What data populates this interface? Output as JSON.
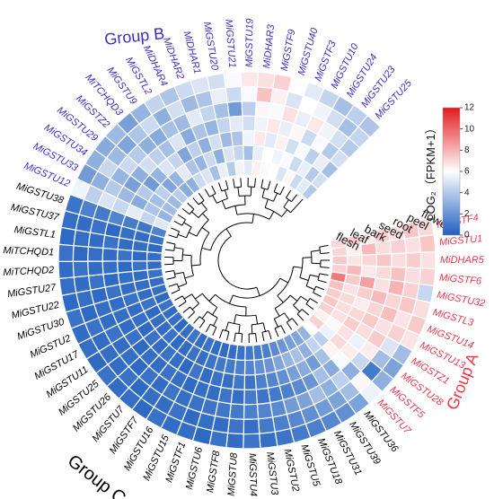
{
  "chart_data": {
    "type": "heatmap",
    "title": "",
    "conditions": [
      "flower",
      "peel",
      "root",
      "seed",
      "bark",
      "leaf",
      "flesh"
    ],
    "colorbar": {
      "label": "LOG₂（FPKM+1）",
      "min": 0,
      "max": 12,
      "ticks": [
        0,
        2,
        4,
        6,
        8,
        10,
        12
      ],
      "colors": [
        "#1f5fbf",
        "#ffffff",
        "#e31a1c"
      ]
    },
    "groups": [
      {
        "name": "Group A",
        "color": "#e8364a"
      },
      {
        "name": "Group B",
        "color": "#3b2cc9"
      },
      {
        "name": "Group C",
        "color": "#000000"
      }
    ],
    "genes": [
      {
        "name": "MiGSTF4",
        "group": "Group A",
        "values": [
          7.0,
          7.5,
          6.8,
          7.2,
          6.5,
          7.3,
          7.0
        ]
      },
      {
        "name": "MiGSTU1",
        "group": "Group A",
        "values": [
          7.5,
          6.8,
          7.2,
          6.9,
          7.8,
          6.4,
          7.1
        ]
      },
      {
        "name": "MiDHAR5",
        "group": "Group A",
        "values": [
          6.8,
          7.3,
          6.9,
          7.5,
          7.1,
          6.7,
          7.4
        ]
      },
      {
        "name": "MiGSTF6",
        "group": "Group A",
        "values": [
          7.2,
          6.9,
          7.6,
          7.0,
          6.6,
          7.8,
          7.2
        ]
      },
      {
        "name": "MiGSTU32",
        "group": "Group A",
        "values": [
          4.5,
          7.2,
          8.0,
          6.8,
          8.5,
          7.4,
          9.5
        ]
      },
      {
        "name": "MiGSTL3",
        "group": "Group A",
        "values": [
          6.9,
          7.5,
          7.1,
          7.8,
          7.3,
          6.8,
          7.6
        ]
      },
      {
        "name": "MiGSTU14",
        "group": "Group A",
        "values": [
          7.4,
          6.7,
          7.7,
          7.1,
          6.5,
          7.0,
          7.3
        ]
      },
      {
        "name": "MiGSTU13",
        "group": "Group A",
        "values": [
          6.7,
          7.2,
          6.8,
          7.4,
          7.0,
          6.9,
          7.5
        ]
      },
      {
        "name": "MiGSTZ1",
        "group": "Group A",
        "values": [
          3.5,
          5.0,
          7.4,
          6.9,
          7.3,
          6.8,
          7.2
        ]
      },
      {
        "name": "MiGSTU28",
        "group": "Group A",
        "values": [
          2.5,
          3.5,
          6.5,
          5.5,
          6.8,
          6.2,
          6.4
        ]
      },
      {
        "name": "MiGSTF5",
        "group": "Group A",
        "values": [
          3.0,
          1.0,
          4.5,
          6.5,
          7.0,
          5.5,
          7.2
        ]
      },
      {
        "name": "MiGSTU7",
        "group": "Group A",
        "values": [
          5.5,
          6.2,
          3.0,
          5.8,
          6.3,
          4.2,
          6.0
        ]
      },
      {
        "name": "MiGSTU36",
        "group": "Group C",
        "values": [
          2.5,
          3.5,
          4.2,
          2.8,
          3.6,
          4.4,
          3.2
        ]
      },
      {
        "name": "MiGSTU39",
        "group": "Group C",
        "values": [
          1.8,
          2.5,
          3.0,
          3.6,
          2.2,
          3.0,
          2.6
        ]
      },
      {
        "name": "MiGSTU31",
        "group": "Group C",
        "values": [
          1.5,
          2.2,
          3.5,
          2.0,
          2.8,
          3.6,
          2.4
        ]
      },
      {
        "name": "MiGSTU18",
        "group": "Group C",
        "values": [
          1.2,
          1.8,
          2.5,
          1.6,
          2.4,
          3.2,
          2.0
        ]
      },
      {
        "name": "MiGSTU5",
        "group": "Group C",
        "values": [
          1.0,
          1.5,
          2.2,
          1.2,
          1.8,
          2.6,
          1.6
        ]
      },
      {
        "name": "MiGSTU2",
        "group": "Group C",
        "values": [
          0.8,
          1.2,
          1.6,
          1.0,
          1.4,
          2.0,
          1.2
        ]
      },
      {
        "name": "MiGSTU3",
        "group": "Group C",
        "values": [
          0.6,
          1.0,
          1.4,
          0.8,
          1.2,
          1.8,
          1.0
        ]
      },
      {
        "name": "MiGSTU4",
        "group": "Group C",
        "values": [
          0.8,
          0.6,
          1.2,
          1.0,
          0.8,
          1.4,
          0.9
        ]
      },
      {
        "name": "MiGSTU8",
        "group": "Group C",
        "values": [
          0.5,
          0.8,
          1.0,
          0.6,
          0.9,
          1.2,
          0.7
        ]
      },
      {
        "name": "MiGSTF8",
        "group": "Group C",
        "values": [
          0.7,
          0.5,
          0.9,
          0.8,
          0.6,
          1.0,
          0.6
        ]
      },
      {
        "name": "MiGSTU6",
        "group": "Group C",
        "values": [
          0.4,
          0.6,
          0.8,
          0.5,
          0.7,
          0.9,
          0.5
        ]
      },
      {
        "name": "MiGSTF1",
        "group": "Group C",
        "values": [
          0.6,
          0.4,
          0.7,
          0.6,
          0.5,
          0.8,
          0.5
        ]
      },
      {
        "name": "MiGSTU15",
        "group": "Group C",
        "values": [
          0.5,
          0.7,
          0.6,
          0.4,
          0.8,
          0.6,
          0.7
        ]
      },
      {
        "name": "MiGSTU16",
        "group": "Group C",
        "values": [
          0.7,
          0.5,
          0.8,
          0.6,
          0.4,
          0.7,
          0.5
        ]
      },
      {
        "name": "MiGSTF7",
        "group": "Group C",
        "values": [
          0.4,
          0.6,
          0.5,
          0.7,
          0.6,
          0.5,
          0.8
        ]
      },
      {
        "name": "MiGSTU7",
        "group": "Group C",
        "values": [
          0.6,
          0.4,
          0.7,
          0.5,
          0.7,
          0.4,
          0.6
        ]
      },
      {
        "name": "MiGSTU26",
        "group": "Group C",
        "values": [
          0.5,
          0.7,
          0.4,
          0.6,
          0.5,
          0.7,
          0.4
        ]
      },
      {
        "name": "MiGSTU25",
        "group": "Group C",
        "values": [
          0.7,
          0.5,
          0.6,
          0.4,
          0.7,
          0.5,
          0.6
        ]
      },
      {
        "name": "MiGSTU11",
        "group": "Group C",
        "values": [
          0.4,
          0.6,
          0.5,
          0.7,
          0.4,
          0.6,
          0.5
        ]
      },
      {
        "name": "MiGSTU17",
        "group": "Group C",
        "values": [
          0.6,
          0.5,
          0.7,
          0.5,
          0.6,
          0.4,
          0.7
        ]
      },
      {
        "name": "MiGSTU2",
        "group": "Group C",
        "values": [
          0.5,
          0.7,
          0.5,
          0.6,
          0.5,
          0.7,
          0.4
        ]
      },
      {
        "name": "MiGSTU30",
        "group": "Group C",
        "values": [
          0.7,
          0.4,
          0.6,
          0.5,
          0.7,
          0.5,
          0.6
        ]
      },
      {
        "name": "MiGSTU22",
        "group": "Group C",
        "values": [
          0.4,
          0.6,
          0.4,
          0.7,
          0.5,
          0.6,
          0.5
        ]
      },
      {
        "name": "MiGSTU27",
        "group": "Group C",
        "values": [
          0.6,
          0.5,
          0.7,
          0.4,
          0.6,
          0.5,
          0.7
        ]
      },
      {
        "name": "MiTCHQD2",
        "group": "Group C",
        "values": [
          0.5,
          0.7,
          0.5,
          0.6,
          0.4,
          0.7,
          0.5
        ]
      },
      {
        "name": "MiTCHQD1",
        "group": "Group C",
        "values": [
          0.7,
          0.4,
          0.6,
          0.5,
          0.7,
          0.4,
          0.6
        ]
      },
      {
        "name": "MiGSTL1",
        "group": "Group C",
        "values": [
          0.4,
          0.6,
          0.5,
          0.7,
          0.5,
          0.6,
          0.4
        ]
      },
      {
        "name": "MiGSTU37",
        "group": "Group C",
        "values": [
          0.6,
          0.5,
          0.7,
          0.4,
          0.6,
          0.5,
          0.7
        ]
      },
      {
        "name": "MiGSTU38",
        "group": "Group C",
        "values": [
          0.8,
          1.2,
          1.0,
          1.4,
          1.1,
          0.9,
          1.3
        ]
      },
      {
        "name": "MiGSTU12",
        "group": "Group B",
        "values": [
          5.6,
          4.2,
          5.0,
          4.5,
          5.3,
          4.4,
          5.1
        ]
      },
      {
        "name": "MiGSTU33",
        "group": "Group B",
        "values": [
          2.2,
          3.0,
          4.0,
          3.4,
          2.8,
          3.8,
          3.2
        ]
      },
      {
        "name": "MiGSTU34",
        "group": "Group B",
        "values": [
          3.0,
          4.5,
          3.2,
          2.4,
          4.0,
          3.6,
          3.5
        ]
      },
      {
        "name": "MiGSTU29",
        "group": "Group B",
        "values": [
          2.8,
          3.4,
          4.6,
          3.0,
          2.2,
          4.2,
          3.4
        ]
      },
      {
        "name": "MiGSTZ2",
        "group": "Group B",
        "values": [
          3.4,
          2.6,
          4.0,
          4.8,
          3.2,
          2.6,
          4.1
        ]
      },
      {
        "name": "MiTCHQD3",
        "group": "Group B",
        "values": [
          2.4,
          3.8,
          3.0,
          4.2,
          5.0,
          3.2,
          2.8
        ]
      },
      {
        "name": "MiGSTU9",
        "group": "Group B",
        "values": [
          3.2,
          4.6,
          2.8,
          3.6,
          4.4,
          5.2,
          3.0
        ]
      },
      {
        "name": "MiGSTL2",
        "group": "Group B",
        "values": [
          4.4,
          3.0,
          3.6,
          5.0,
          2.6,
          3.8,
          4.6
        ]
      },
      {
        "name": "MiDHAR4",
        "group": "Group B",
        "values": [
          3.8,
          4.8,
          3.4,
          2.8,
          4.2,
          3.2,
          5.0
        ]
      },
      {
        "name": "MiDHAR2",
        "group": "Group B",
        "values": [
          4.6,
          3.4,
          5.2,
          3.8,
          3.0,
          4.6,
          3.6
        ]
      },
      {
        "name": "MiDHAR1",
        "group": "Group B",
        "values": [
          5.0,
          3.8,
          4.4,
          3.2,
          4.8,
          3.0,
          5.4
        ]
      },
      {
        "name": "MiGSTU20",
        "group": "Group B",
        "values": [
          4.8,
          5.4,
          3.6,
          4.4,
          3.4,
          5.0,
          4.0
        ]
      },
      {
        "name": "MiGSTU21",
        "group": "Group B",
        "values": [
          5.8,
          4.6,
          2.2,
          5.2,
          3.8,
          4.4,
          5.6
        ]
      },
      {
        "name": "MiGSTU19",
        "group": "Group B",
        "values": [
          6.6,
          5.8,
          4.2,
          4.8,
          5.6,
          3.6,
          5.2
        ]
      },
      {
        "name": "MiDHAR3",
        "group": "Group B",
        "values": [
          6.8,
          7.6,
          6.2,
          5.6,
          6.6,
          5.4,
          6.4
        ]
      },
      {
        "name": "MiGSTF9",
        "group": "Group B",
        "values": [
          7.2,
          6.4,
          5.8,
          6.6,
          5.2,
          6.0,
          5.8
        ]
      },
      {
        "name": "MiGSTU40",
        "group": "Group B",
        "values": [
          6.0,
          5.0,
          6.8,
          5.4,
          6.4,
          5.6,
          6.0
        ]
      },
      {
        "name": "MiGSTF3",
        "group": "Group B",
        "values": [
          5.2,
          6.0,
          5.4,
          6.2,
          4.8,
          5.8,
          5.0
        ]
      },
      {
        "name": "MiGSTU10",
        "group": "Group B",
        "values": [
          4.4,
          5.6,
          6.6,
          4.6,
          5.8,
          4.6,
          6.2
        ]
      },
      {
        "name": "MiGSTU24",
        "group": "Group B",
        "values": [
          3.6,
          4.8,
          5.6,
          5.8,
          4.2,
          5.4,
          4.6
        ]
      },
      {
        "name": "MiGSTU23",
        "group": "Group B",
        "values": [
          4.2,
          3.6,
          4.8,
          4.0,
          5.4,
          4.0,
          5.2
        ]
      },
      {
        "name": "MiGSTU25",
        "group": "Group B",
        "values": [
          3.8,
          4.4,
          4.0,
          4.8,
          3.6,
          4.8,
          4.0
        ]
      }
    ]
  }
}
